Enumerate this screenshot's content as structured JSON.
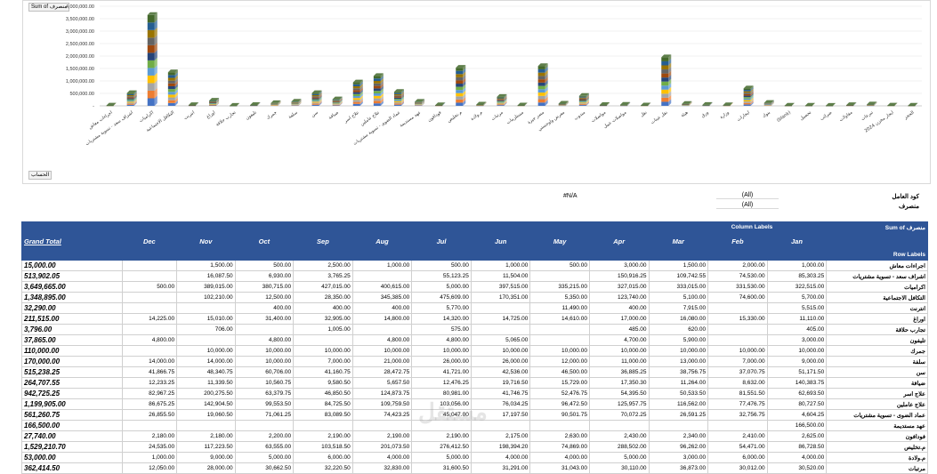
{
  "chart_buttons": {
    "sum_of": "Sum of",
    "field": "منصرف",
    "axis_field": "الحساب"
  },
  "chart_data": {
    "type": "bar",
    "stacked": true,
    "title": "",
    "ylabel": "",
    "ylim": [
      0,
      4000000
    ],
    "y_ticks": [
      "-",
      "500,000.00",
      "1,000,000.00",
      "1,500,000.00",
      "2,000,000.00",
      "2,500,000.00",
      "3,000,000.00",
      "3,500,000.00",
      "4,000,000.00"
    ],
    "categories": [
      "اجراءات معاش",
      "اشراف سعد - تسوية مشتريات",
      "اكراميات",
      "التكافل الاجتماعية",
      "انترنت",
      "اوراغ",
      "تجارب حلاقة",
      "تليفون",
      "جمرك",
      "سلفة",
      "سن",
      "ضيافة",
      "علاج اسر",
      "علاج عاملين",
      "عماد الضوى - تسوية مشتريات",
      "عهد مستديمة",
      "فودافون",
      "م.تخليص",
      "م.ولادة",
      "مرتبات",
      "مستلزمات",
      "مصر جيزة",
      "معرض ولوجستي",
      "مندوب",
      "مواصلات",
      "مواصلات عمل",
      "نقل",
      "نقل عينات",
      "هيئة",
      "ورق",
      "وزارة",
      "ايجارات",
      "بنوك",
      "(blank)",
      "تحصيل",
      "ضرائب",
      "مقاولات",
      "تبرعات",
      "ايجار مخزن 2024",
      "الحجز"
    ],
    "values": [
      15000,
      513902,
      3649665,
      1348895,
      32290,
      211515,
      3796,
      37865,
      110000,
      170000,
      515238,
      264707,
      942725,
      1199905,
      561260,
      166500,
      27740,
      1529210,
      53000,
      362414,
      20000,
      1600000,
      90000,
      400000,
      35000,
      45000,
      20000,
      1950000,
      80000,
      40000,
      25000,
      700000,
      120000,
      10000,
      8000,
      5000,
      30000,
      60000,
      15000,
      10000
    ],
    "series_colors": [
      "#4472c4",
      "#ed7d31",
      "#a5a5a5",
      "#ffc000",
      "#5b9bd5",
      "#70ad47",
      "#264478",
      "#9e480e",
      "#636363",
      "#997300",
      "#255e91",
      "#43682b"
    ]
  },
  "filters": [
    {
      "label": "كود العامل",
      "value": "(All)"
    },
    {
      "label": "منصرف",
      "value": "(All)"
    }
  ],
  "na_text": "#N/A",
  "table": {
    "header_sum": "Sum of منصرف",
    "column_labels": "Column Labels",
    "row_labels": "Row Labels",
    "grand_total": "Grand Total",
    "months": [
      "Dec",
      "Nov",
      "Oct",
      "Sep",
      "Aug",
      "Jul",
      "Jun",
      "May",
      "Apr",
      "Mar",
      "Feb",
      "Jan"
    ],
    "rows": [
      {
        "label": "اجراءات معاش",
        "total": "15,000.00",
        "cells": [
          "",
          "1,500.00",
          "500.00",
          "2,500.00",
          "1,000.00",
          "500.00",
          "1,000.00",
          "500.00",
          "3,000.00",
          "1,500.00",
          "2,000.00",
          "1,000.00"
        ]
      },
      {
        "label": "اشراف سعد - تسوية مشتريات",
        "total": "513,902.05",
        "cells": [
          "",
          "16,087.50",
          "6,930.00",
          "3,765.25",
          "",
          "55,123.25",
          "11,504.00",
          "",
          "150,916.25",
          "109,742.55",
          "74,530.00",
          "85,303.25"
        ]
      },
      {
        "label": "اكراميات",
        "total": "3,649,665.00",
        "cells": [
          "500.00",
          "389,015.00",
          "380,715.00",
          "427,015.00",
          "400,615.00",
          "5,000.00",
          "397,515.00",
          "335,215.00",
          "327,015.00",
          "333,015.00",
          "331,530.00",
          "322,515.00"
        ]
      },
      {
        "label": "التكافل الاجتماعية",
        "total": "1,348,895.00",
        "cells": [
          "",
          "102,210.00",
          "12,500.00",
          "28,350.00",
          "345,385.00",
          "475,609.00",
          "170,351.00",
          "5,350.00",
          "123,740.00",
          "5,100.00",
          "74,600.00",
          "5,700.00"
        ]
      },
      {
        "label": "انترنت",
        "total": "32,290.00",
        "cells": [
          "",
          "",
          "400.00",
          "400.00",
          "400.00",
          "5,770.00",
          "",
          "11,490.00",
          "400.00",
          "7,915.00",
          "",
          "5,515.00"
        ]
      },
      {
        "label": "اوراغ",
        "total": "211,515.00",
        "cells": [
          "14,225.00",
          "15,010.00",
          "31,400.00",
          "32,905.00",
          "14,800.00",
          "14,320.00",
          "14,725.00",
          "14,610.00",
          "17,000.00",
          "16,080.00",
          "15,330.00",
          "11,110.00"
        ]
      },
      {
        "label": "تجارب حلاقة",
        "total": "3,796.00",
        "cells": [
          "",
          "706.00",
          "",
          "1,005.00",
          "",
          "575.00",
          "",
          "",
          "485.00",
          "620.00",
          "",
          "405.00"
        ]
      },
      {
        "label": "تليفون",
        "total": "37,865.00",
        "cells": [
          "4,800.00",
          "",
          "4,800.00",
          "",
          "4,800.00",
          "4,800.00",
          "5,065.00",
          "",
          "4,700.00",
          "5,900.00",
          "",
          "3,000.00"
        ]
      },
      {
        "label": "جمرك",
        "total": "110,000.00",
        "cells": [
          "",
          "10,000.00",
          "10,000.00",
          "10,000.00",
          "10,000.00",
          "10,000.00",
          "10,000.00",
          "10,000.00",
          "10,000.00",
          "10,000.00",
          "10,000.00",
          "10,000.00"
        ]
      },
      {
        "label": "سلفة",
        "total": "170,000.00",
        "cells": [
          "14,000.00",
          "14,000.00",
          "10,000.00",
          "7,000.00",
          "21,000.00",
          "26,000.00",
          "26,000.00",
          "12,000.00",
          "11,000.00",
          "13,000.00",
          "7,000.00",
          "9,000.00"
        ]
      },
      {
        "label": "سن",
        "total": "515,238.25",
        "cells": [
          "41,866.75",
          "48,340.75",
          "60,706.00",
          "41,160.75",
          "28,472.75",
          "41,721.00",
          "42,536.00",
          "46,500.00",
          "36,885.25",
          "38,756.75",
          "37,070.75",
          "51,171.50"
        ]
      },
      {
        "label": "ضيافة",
        "total": "264,707.55",
        "cells": [
          "12,233.25",
          "11,339.50",
          "10,560.75",
          "9,580.50",
          "5,657.50",
          "12,476.25",
          "19,716.50",
          "15,729.00",
          "17,350.30",
          "11,264.00",
          "8,632.00",
          "140,383.75"
        ]
      },
      {
        "label": "علاج اسر",
        "total": "942,725.25",
        "cells": [
          "82,967.25",
          "200,275.50",
          "63,379.75",
          "46,850.50",
          "124,873.75",
          "80,981.00",
          "41,746.75",
          "52,476.75",
          "54,395.50",
          "50,533.50",
          "81,551.50",
          "62,693.50"
        ]
      },
      {
        "label": "علاج عاملين",
        "total": "1,199,905.00",
        "cells": [
          "86,675.25",
          "142,904.50",
          "99,553.50",
          "84,725.50",
          "109,759.50",
          "103,056.00",
          "76,034.25",
          "96,472.50",
          "125,957.75",
          "116,562.00",
          "77,476.75",
          "80,727.50"
        ]
      },
      {
        "label": "عماد الضوى - تسوية مشتريات",
        "total": "561,260.75",
        "cells": [
          "26,855.50",
          "19,060.50",
          "71,061.25",
          "83,089.50",
          "74,423.25",
          "45,047.00",
          "17,197.50",
          "90,501.75",
          "70,072.25",
          "26,591.25",
          "32,756.75",
          "4,604.25"
        ]
      },
      {
        "label": "عهد مستديمة",
        "total": "166,500.00",
        "cells": [
          "",
          "",
          "",
          "",
          "",
          "",
          "",
          "",
          "",
          "",
          "",
          "166,500.00"
        ]
      },
      {
        "label": "فودافون",
        "total": "27,740.00",
        "cells": [
          "2,180.00",
          "2,180.00",
          "2,200.00",
          "2,190.00",
          "2,190.00",
          "2,190.00",
          "2,175.00",
          "2,630.00",
          "2,430.00",
          "2,340.00",
          "2,410.00",
          "2,625.00"
        ]
      },
      {
        "label": "م.تخليص",
        "total": "1,529,210.70",
        "cells": [
          "24,535.00",
          "117,223.50",
          "63,555.00",
          "103,518.50",
          "201,073.50",
          "276,412.50",
          "198,394.20",
          "74,869.00",
          "288,502.00",
          "96,262.00",
          "54,471.00",
          "86,728.50"
        ]
      },
      {
        "label": "م.ولادة",
        "total": "53,000.00",
        "cells": [
          "1,000.00",
          "9,000.00",
          "5,000.00",
          "6,000.00",
          "4,000.00",
          "5,000.00",
          "4,000.00",
          "4,000.00",
          "5,000.00",
          "3,000.00",
          "6,000.00",
          "4,000.00"
        ]
      },
      {
        "label": "مرتبات",
        "total": "362,414.50",
        "cells": [
          "12,050.00",
          "28,000.00",
          "30,662.50",
          "32,220.50",
          "32,830.00",
          "31,600.50",
          "31,291.00",
          "31,043.00",
          "30,110.00",
          "36,873.00",
          "30,012.00",
          "30,520.00"
        ]
      }
    ]
  }
}
